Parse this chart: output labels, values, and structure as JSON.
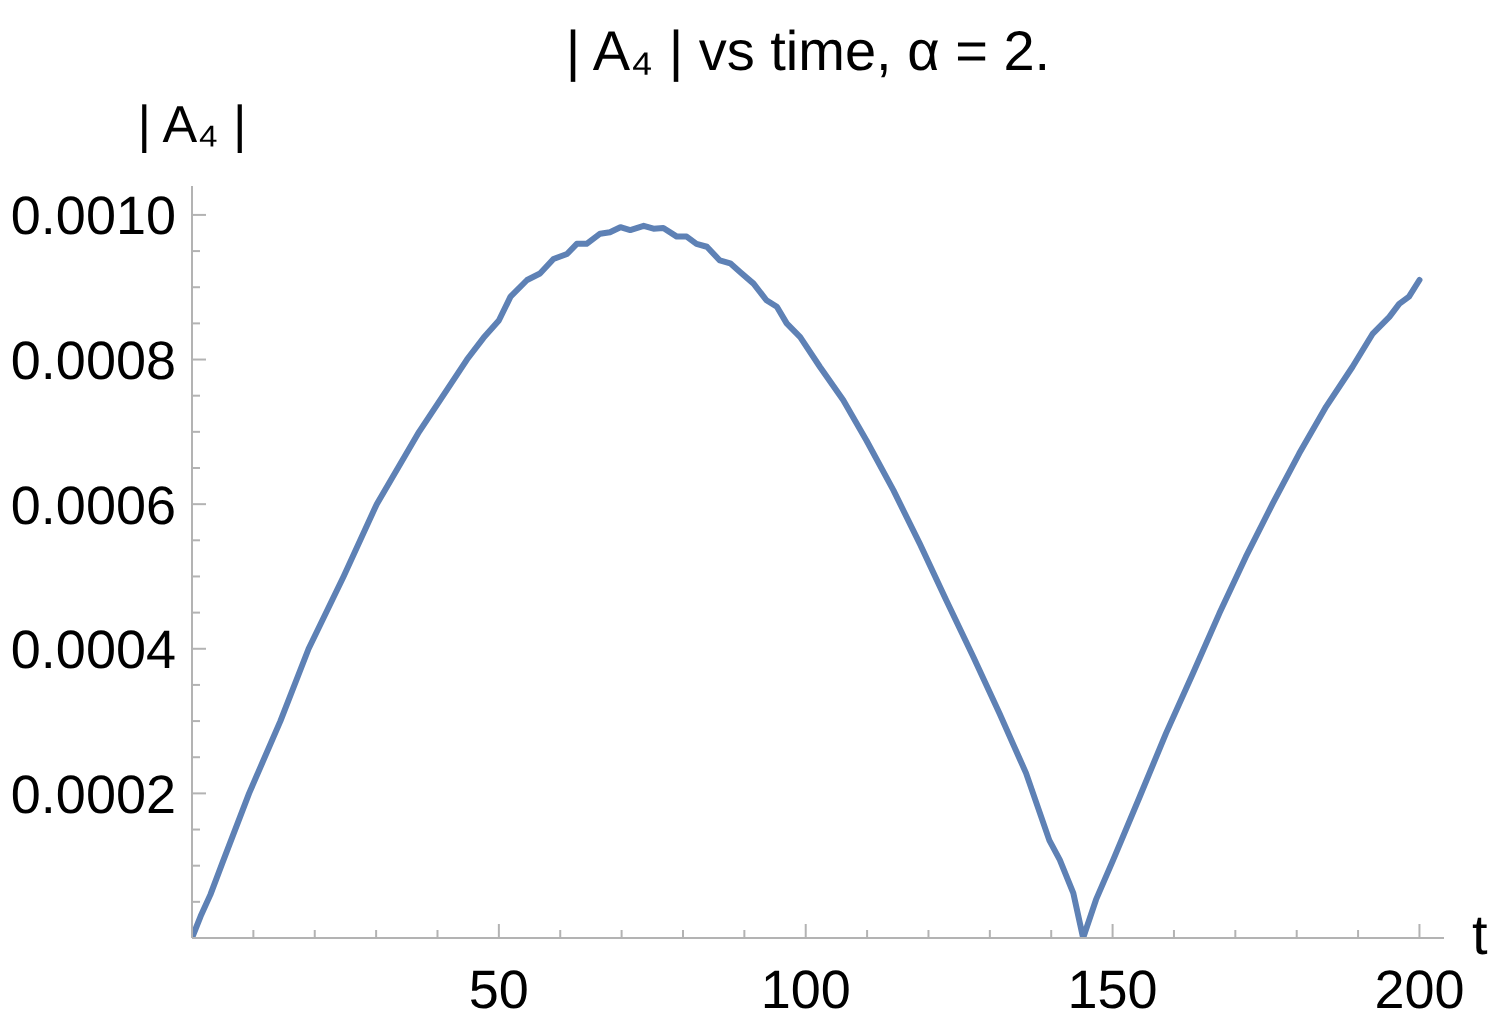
{
  "chart_data": {
    "type": "line",
    "title": "| A₄ | vs time, α = 2.",
    "xlabel": "t",
    "ylabel": "| A₄ |",
    "x": [
      0,
      1.4,
      3,
      5,
      9.3,
      14.4,
      19,
      24.7,
      30.1,
      37,
      44.8,
      47.5,
      50,
      51.9,
      54.6,
      56.7,
      58.9,
      61.1,
      62.7,
      64.3,
      66.5,
      68.1,
      69.8,
      71.4,
      73.6,
      75.2,
      76.8,
      79,
      80.6,
      82.2,
      83.9,
      86,
      87.7,
      89.3,
      91.5,
      93.6,
      95.3,
      96.9,
      99.1,
      102.3,
      106.1,
      109.9,
      114.3,
      118.6,
      122.9,
      127.3,
      131.6,
      135.9,
      139.7,
      141.4,
      143.6,
      145.2,
      147.3,
      150.1,
      154.4,
      158.7,
      163.1,
      167.4,
      171.7,
      176.1,
      180.4,
      184.8,
      189.1,
      192.4,
      195.1,
      196.7,
      198.3,
      200
    ],
    "series": [
      {
        "color": "#5e81b5",
        "values": [
          0,
          3e-05,
          6e-05,
          0.000105,
          0.0002,
          0.0003,
          0.0004,
          0.0005,
          0.0006,
          0.0007,
          0.0008,
          0.00083,
          0.000854,
          0.000887,
          0.00091,
          0.000919,
          0.000939,
          0.000946,
          0.00096,
          0.00096,
          0.000974,
          0.000976,
          0.000983,
          0.000979,
          0.000985,
          0.000981,
          0.000982,
          0.00097,
          0.00097,
          0.00096,
          0.000956,
          0.000937,
          0.000933,
          0.000921,
          0.000905,
          0.000882,
          0.000873,
          0.00085,
          0.000831,
          0.00079,
          0.000744,
          0.000688,
          0.000619,
          0.000545,
          0.000467,
          0.000389,
          0.00031,
          0.000228,
          0.000135,
          0.000108,
          6.2e-05,
          0,
          5.3e-05,
          0.000108,
          0.000195,
          0.000283,
          0.000366,
          0.000449,
          0.000527,
          0.000601,
          0.00067,
          0.000735,
          0.00079,
          0.000836,
          0.000859,
          0.000877,
          0.000887,
          0.00091
        ]
      }
    ],
    "xlim": [
      0,
      204
    ],
    "ylim": [
      0,
      0.00104
    ],
    "xticks": [
      {
        "value": 10,
        "label": null
      },
      {
        "value": 20,
        "label": null
      },
      {
        "value": 30,
        "label": null
      },
      {
        "value": 40,
        "label": null
      },
      50,
      {
        "value": 60,
        "label": null
      },
      {
        "value": 70,
        "label": null
      },
      {
        "value": 80,
        "label": null
      },
      {
        "value": 90,
        "label": null
      },
      100,
      {
        "value": 110,
        "label": null
      },
      {
        "value": 120,
        "label": null
      },
      {
        "value": 130,
        "label": null
      },
      {
        "value": 140,
        "label": null
      },
      150,
      {
        "value": 160,
        "label": null
      },
      {
        "value": 170,
        "label": null
      },
      {
        "value": 180,
        "label": null
      },
      {
        "value": 190,
        "label": null
      },
      200
    ],
    "yticks": [
      {
        "value": 5e-05,
        "label": null
      },
      {
        "value": 0.0001,
        "label": null
      },
      {
        "value": 0.00015,
        "label": null
      },
      0.0002,
      {
        "value": 0.00025,
        "label": null
      },
      {
        "value": 0.0003,
        "label": null
      },
      {
        "value": 0.00035,
        "label": null
      },
      0.0004,
      {
        "value": 0.00045,
        "label": null
      },
      {
        "value": 0.0005,
        "label": null
      },
      {
        "value": 0.00055,
        "label": null
      },
      0.0006,
      {
        "value": 0.00065,
        "label": null
      },
      {
        "value": 0.0007,
        "label": null
      },
      {
        "value": 0.00075,
        "label": null
      },
      0.0008,
      {
        "value": 0.00085,
        "label": null
      },
      {
        "value": 0.0009,
        "label": null
      },
      {
        "value": 0.00095,
        "label": null
      },
      {
        "value": 0.001,
        "label": "0.0010"
      }
    ],
    "marker": "none",
    "line_style": "solid"
  }
}
